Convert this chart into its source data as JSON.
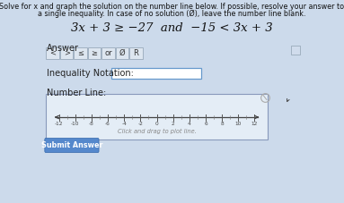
{
  "bg_color": "#ccdaeb",
  "title_line1": "Solve for x and graph the solution on the number line below. If possible, resolve your answer to",
  "title_line2": "a single inequality. In case of no solution (Ø), leave the number line blank.",
  "equation": "3x + 3 ≥ −27  and  −15 < 3x + 3",
  "answer_label": "Answer",
  "buttons": [
    "<",
    ">",
    "≤",
    "≥",
    "or",
    "Ø",
    "R"
  ],
  "notation_label": "Inequality Notation:",
  "numberline_label": "Number Line:",
  "numberline_ticks": [
    -12,
    -10,
    -8,
    -6,
    -4,
    -2,
    0,
    2,
    4,
    6,
    8,
    10,
    12
  ],
  "drag_text": "Click and drag to plot line.",
  "submit_label": "Submit Answer",
  "submit_bg": "#5588cc",
  "box_bg": "#e8eef5",
  "nl_box_bg": "#dde6f0",
  "box_border": "#8899bb",
  "button_bg": "#dde6f0",
  "button_border": "#99aabb",
  "notation_box_border": "#6699cc",
  "icon_border": "#99aabb",
  "icon_bg": "#d0dcec"
}
